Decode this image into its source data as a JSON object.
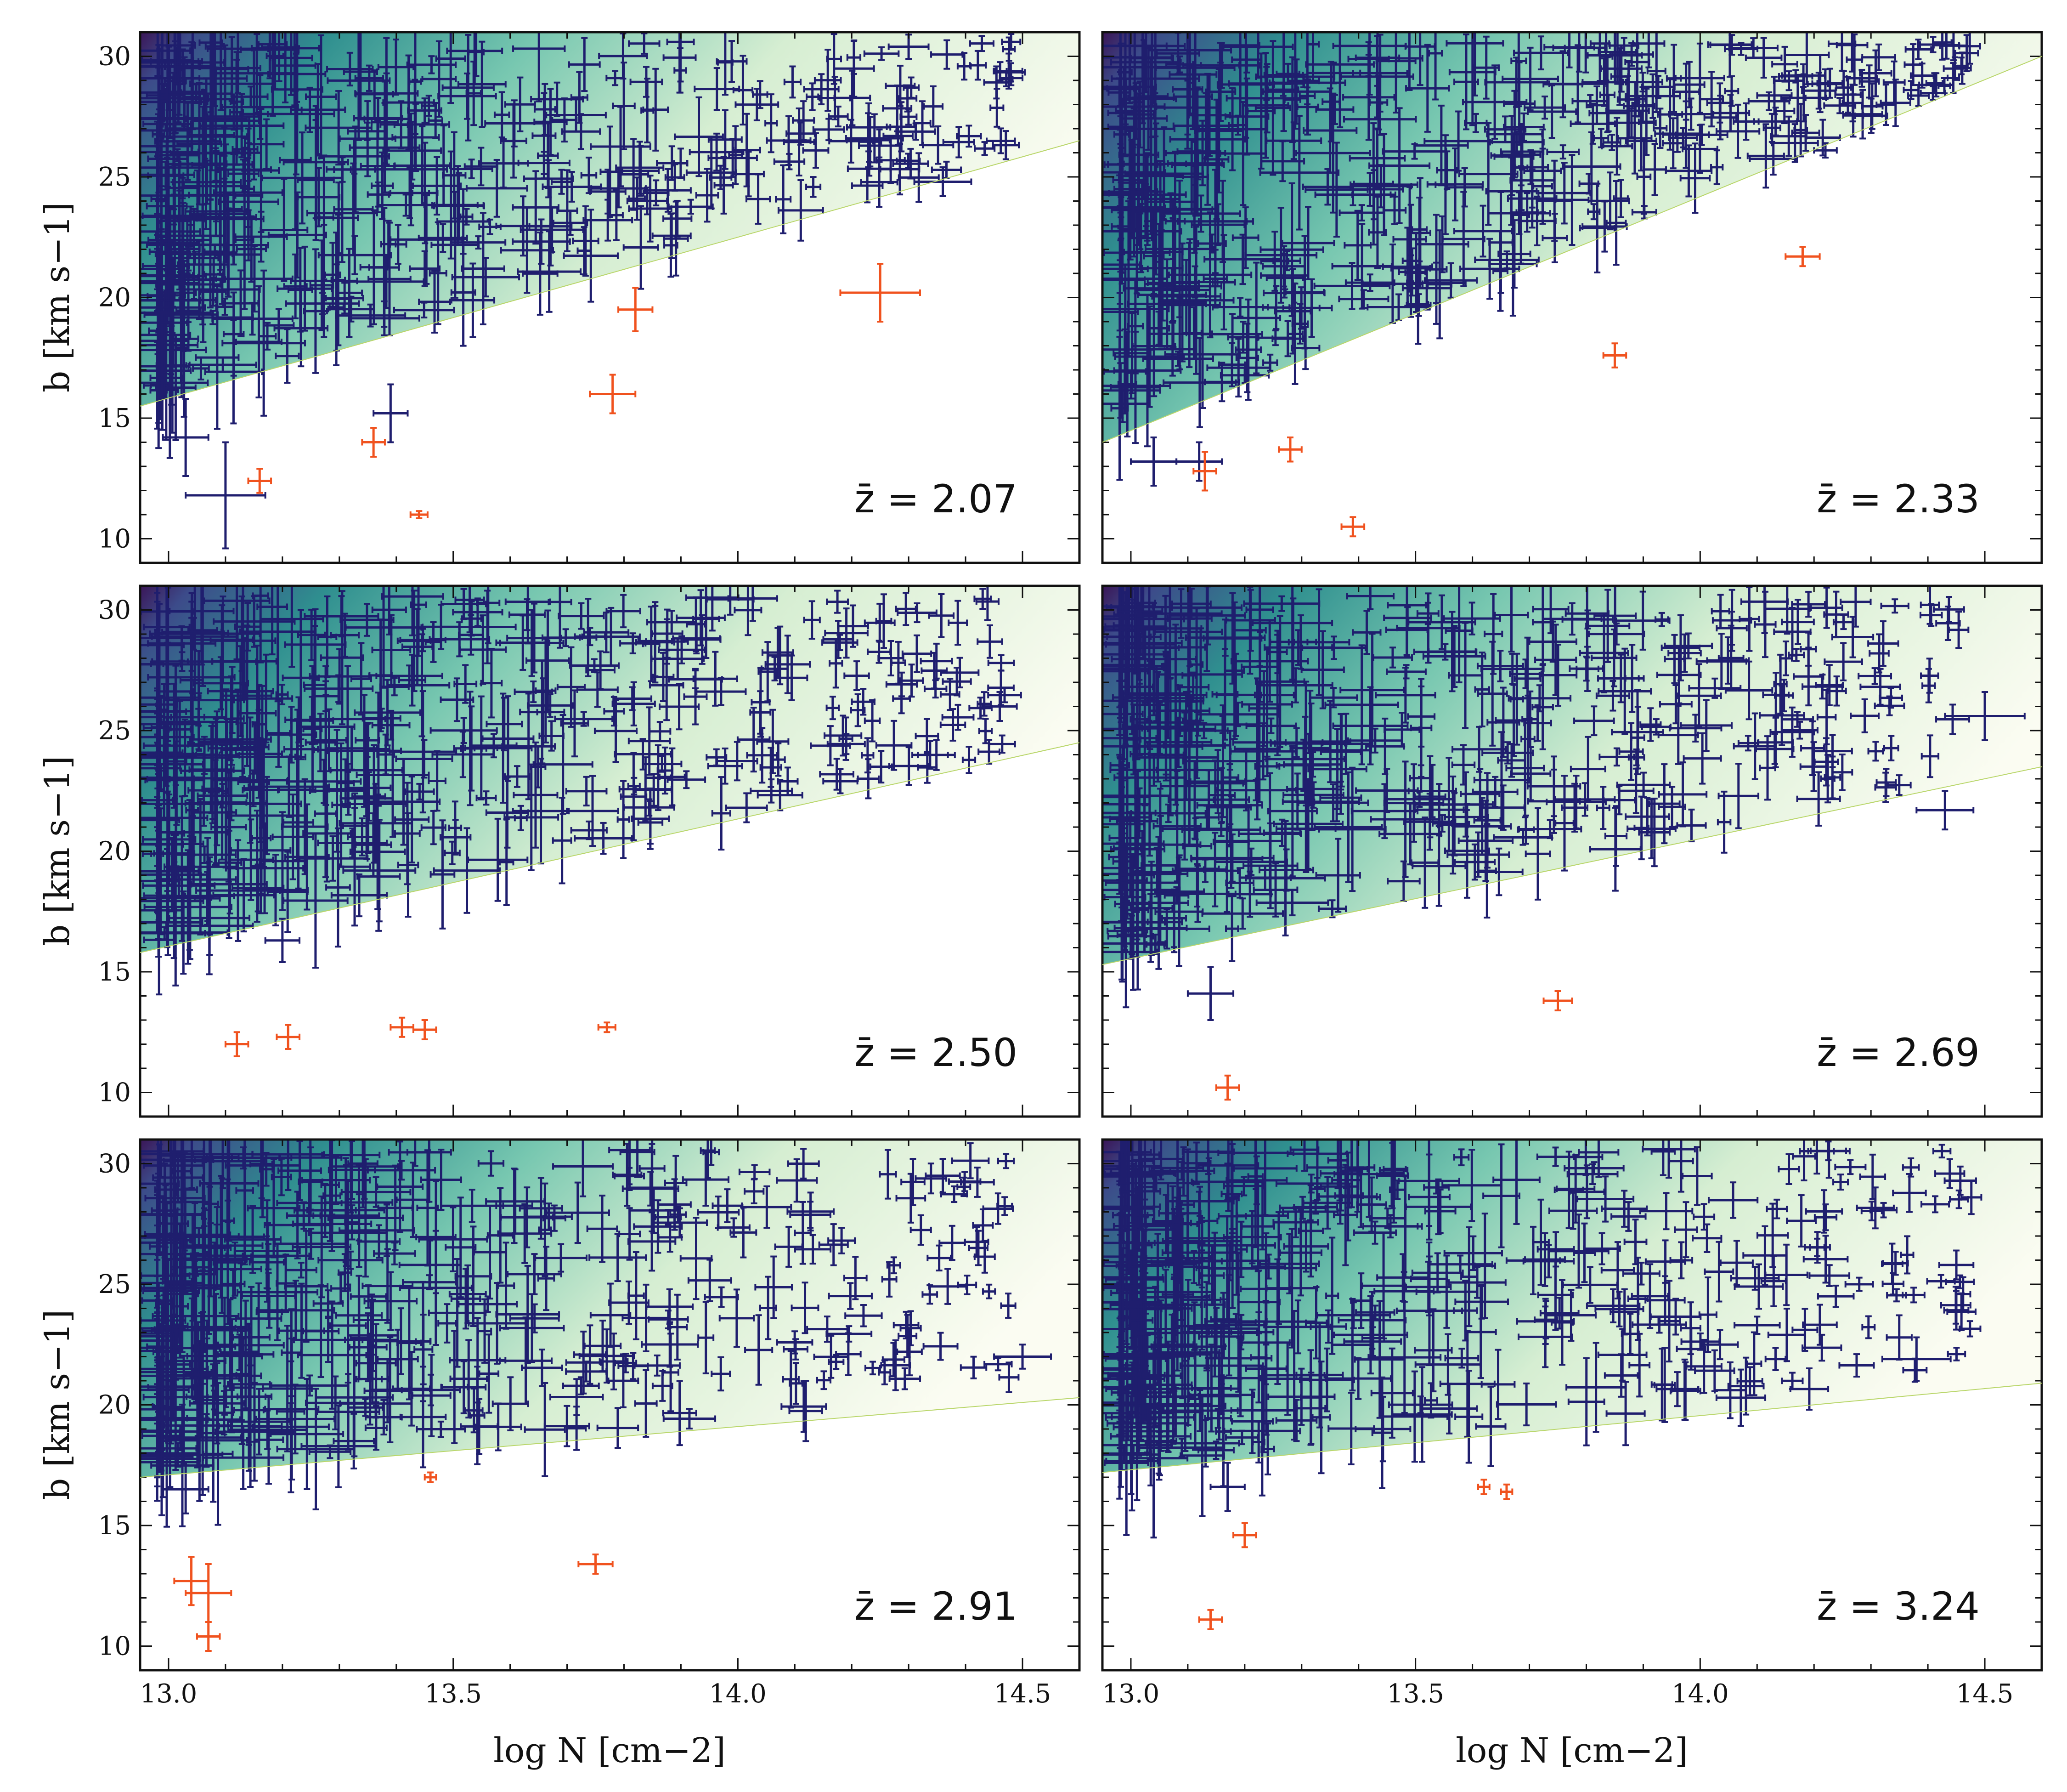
{
  "figure": {
    "xlabel": "log N [cm−2]",
    "ylabel": "b [km s−1]",
    "colors": {
      "main": "#1f1e6e",
      "outlier": "#f0521e",
      "frame": "#111111"
    }
  },
  "chart_data": [
    {
      "type": "scatter",
      "title": "",
      "z_label": "z̄ = 2.07",
      "xlim": [
        12.95,
        14.6
      ],
      "ylim": [
        9,
        31
      ],
      "xticks": [
        "13.0",
        "13.5",
        "14.0",
        "14.5"
      ],
      "yticks": [
        "10",
        "15",
        "20",
        "25",
        "30"
      ],
      "cutoff_line": {
        "x": [
          12.95,
          14.6
        ],
        "y": [
          15.5,
          26.5
        ]
      },
      "outliers": [
        [
          13.16,
          12.4,
          0.02,
          0.5
        ],
        [
          13.36,
          14.0,
          0.02,
          0.6
        ],
        [
          13.44,
          11.0,
          0.015,
          0.15
        ],
        [
          13.78,
          16.0,
          0.04,
          0.8
        ],
        [
          13.82,
          19.5,
          0.03,
          0.9
        ],
        [
          14.25,
          20.2,
          0.07,
          1.2
        ]
      ],
      "highlights": [
        [
          13.1,
          11.8,
          0.07,
          2.2
        ],
        [
          13.03,
          14.2,
          0.04,
          1.6
        ],
        [
          13.39,
          15.2,
          0.03,
          1.2
        ],
        [
          14.48,
          29.1,
          0.02,
          0.3
        ],
        [
          14.36,
          24.8,
          0.05,
          0.6
        ],
        [
          14.24,
          26.6,
          0.05,
          1.0
        ]
      ]
    },
    {
      "type": "scatter",
      "title": "",
      "z_label": "z̄ = 2.33",
      "xlim": [
        12.95,
        14.6
      ],
      "ylim": [
        9,
        31
      ],
      "xticks": [
        "13.0",
        "13.5",
        "14.0",
        "14.5"
      ],
      "yticks": [
        "10",
        "15",
        "20",
        "25",
        "30"
      ],
      "cutoff_line": {
        "x": [
          12.95,
          14.6
        ],
        "y": [
          14.0,
          30.0
        ]
      },
      "outliers": [
        [
          13.13,
          12.8,
          0.02,
          0.8
        ],
        [
          13.28,
          13.7,
          0.02,
          0.5
        ],
        [
          13.39,
          10.5,
          0.02,
          0.4
        ],
        [
          13.85,
          17.6,
          0.02,
          0.5
        ],
        [
          14.18,
          21.7,
          0.03,
          0.4
        ]
      ],
      "highlights": [
        [
          13.04,
          13.2,
          0.04,
          1.0
        ],
        [
          13.12,
          13.2,
          0.04,
          0.8
        ],
        [
          13.16,
          16.5,
          0.03,
          0.8
        ],
        [
          14.39,
          29.2,
          0.02,
          0.5
        ],
        [
          14.22,
          26.1,
          0.02,
          0.3
        ]
      ]
    },
    {
      "type": "scatter",
      "title": "",
      "z_label": "z̄ = 2.50",
      "xlim": [
        12.95,
        14.6
      ],
      "ylim": [
        9,
        31
      ],
      "xticks": [
        "13.0",
        "13.5",
        "14.0",
        "14.5"
      ],
      "yticks": [
        "10",
        "15",
        "20",
        "25",
        "30"
      ],
      "cutoff_line": {
        "x": [
          12.95,
          14.6
        ],
        "y": [
          15.8,
          24.5
        ]
      },
      "outliers": [
        [
          13.12,
          12.0,
          0.02,
          0.5
        ],
        [
          13.21,
          12.3,
          0.02,
          0.5
        ],
        [
          13.41,
          12.7,
          0.02,
          0.4
        ],
        [
          13.45,
          12.6,
          0.02,
          0.4
        ],
        [
          13.77,
          12.7,
          0.015,
          0.2
        ]
      ],
      "highlights": [
        [
          13.2,
          16.3,
          0.03,
          0.9
        ],
        [
          14.46,
          26.0,
          0.03,
          0.6
        ],
        [
          14.18,
          22.9,
          0.03,
          0.5
        ]
      ]
    },
    {
      "type": "scatter",
      "title": "",
      "z_label": "z̄ = 2.69",
      "xlim": [
        12.95,
        14.6
      ],
      "ylim": [
        9,
        31
      ],
      "xticks": [
        "13.0",
        "13.5",
        "14.0",
        "14.5"
      ],
      "yticks": [
        "10",
        "15",
        "20",
        "25",
        "30"
      ],
      "cutoff_line": {
        "x": [
          12.95,
          14.6
        ],
        "y": [
          15.3,
          23.5
        ]
      },
      "outliers": [
        [
          13.17,
          10.2,
          0.02,
          0.5
        ],
        [
          13.75,
          13.8,
          0.025,
          0.4
        ]
      ],
      "highlights": [
        [
          13.14,
          14.1,
          0.04,
          1.1
        ],
        [
          14.5,
          25.6,
          0.07,
          1.0
        ],
        [
          14.43,
          21.7,
          0.05,
          0.8
        ]
      ]
    },
    {
      "type": "scatter",
      "title": "",
      "z_label": "z̄ = 2.91",
      "xlim": [
        12.95,
        14.6
      ],
      "ylim": [
        9,
        31
      ],
      "xticks": [
        "13.0",
        "13.5",
        "14.0",
        "14.5"
      ],
      "yticks": [
        "10",
        "15",
        "20",
        "25",
        "30"
      ],
      "cutoff_line": {
        "x": [
          12.95,
          14.6
        ],
        "y": [
          17.0,
          20.3
        ]
      },
      "outliers": [
        [
          13.04,
          12.7,
          0.03,
          1.0
        ],
        [
          13.07,
          12.2,
          0.04,
          1.2
        ],
        [
          13.07,
          10.4,
          0.02,
          0.6
        ],
        [
          13.46,
          17.0,
          0.01,
          0.2
        ],
        [
          13.75,
          13.4,
          0.03,
          0.4
        ]
      ],
      "highlights": [
        [
          13.03,
          16.5,
          0.04,
          1.0
        ],
        [
          14.5,
          22.0,
          0.05,
          0.5
        ],
        [
          14.36,
          29.5,
          0.03,
          0.7
        ]
      ]
    },
    {
      "type": "scatter",
      "title": "",
      "z_label": "z̄ = 3.24",
      "xlim": [
        12.95,
        14.6
      ],
      "ylim": [
        9,
        31
      ],
      "xticks": [
        "13.0",
        "13.5",
        "14.0",
        "14.5"
      ],
      "yticks": [
        "10",
        "15",
        "20",
        "25",
        "30"
      ],
      "cutoff_line": {
        "x": [
          12.95,
          14.6
        ],
        "y": [
          17.2,
          20.9
        ]
      },
      "outliers": [
        [
          13.14,
          11.1,
          0.02,
          0.4
        ],
        [
          13.2,
          14.6,
          0.02,
          0.5
        ],
        [
          13.62,
          16.6,
          0.01,
          0.3
        ],
        [
          13.66,
          16.4,
          0.01,
          0.3
        ]
      ],
      "highlights": [
        [
          13.04,
          18.5,
          0.04,
          4.0
        ],
        [
          13.17,
          16.6,
          0.03,
          1.0
        ],
        [
          14.45,
          25.8,
          0.03,
          0.6
        ],
        [
          14.38,
          21.9,
          0.06,
          0.9
        ]
      ]
    }
  ]
}
